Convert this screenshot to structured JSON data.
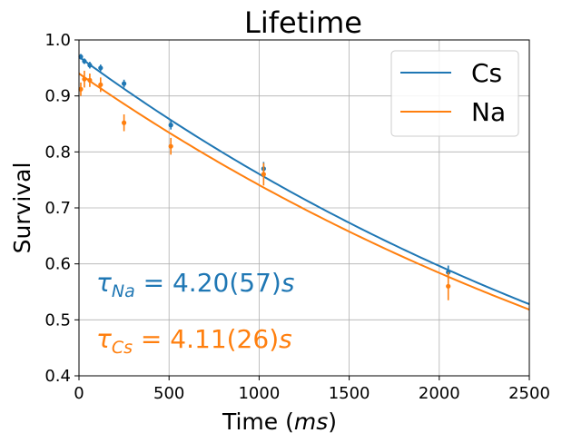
{
  "chart_data": {
    "type": "scatter",
    "title": "Lifetime",
    "xlabel_main": "Time (",
    "xlabel_unit": "ms",
    "xlabel_close": ")",
    "ylabel": "Survival",
    "xlim": [
      0,
      2500
    ],
    "ylim": [
      0.4,
      1.0
    ],
    "xticks": [
      0,
      500,
      1000,
      1500,
      2000,
      2500
    ],
    "xtick_labels": [
      "0",
      "500",
      "1000",
      "1500",
      "2000",
      "2500"
    ],
    "yticks": [
      0.4,
      0.5,
      0.6,
      0.7,
      0.8,
      0.9,
      1.0
    ],
    "ytick_labels": [
      "0.4",
      "0.5",
      "0.6",
      "0.7",
      "0.8",
      "0.9",
      "1.0"
    ],
    "grid": true,
    "legend_placement": "top-right",
    "series": [
      {
        "name": "Cs",
        "color": "#1f77b4",
        "points": [
          {
            "x": 10,
            "y": 0.97,
            "err": 0.005
          },
          {
            "x": 30,
            "y": 0.962,
            "err": 0.005
          },
          {
            "x": 60,
            "y": 0.955,
            "err": 0.006
          },
          {
            "x": 120,
            "y": 0.95,
            "err": 0.006
          },
          {
            "x": 250,
            "y": 0.922,
            "err": 0.007
          },
          {
            "x": 510,
            "y": 0.848,
            "err": 0.008
          },
          {
            "x": 1025,
            "y": 0.77,
            "err": 0.012
          },
          {
            "x": 2050,
            "y": 0.585,
            "err": 0.012
          }
        ],
        "fit": {
          "a": 0.97,
          "tau_ms": 4110
        }
      },
      {
        "name": "Na",
        "color": "#ff7f0e",
        "points": [
          {
            "x": 10,
            "y": 0.912,
            "err": 0.012
          },
          {
            "x": 30,
            "y": 0.93,
            "err": 0.015
          },
          {
            "x": 60,
            "y": 0.928,
            "err": 0.012
          },
          {
            "x": 120,
            "y": 0.92,
            "err": 0.013
          },
          {
            "x": 250,
            "y": 0.852,
            "err": 0.015
          },
          {
            "x": 510,
            "y": 0.81,
            "err": 0.015
          },
          {
            "x": 1025,
            "y": 0.76,
            "err": 0.02
          },
          {
            "x": 2050,
            "y": 0.56,
            "err": 0.025
          }
        ],
        "fit": {
          "a": 0.94,
          "tau_ms": 4200
        }
      }
    ],
    "annotations": [
      {
        "symbol": "τ",
        "sub": "Na",
        "text": " = 4.20(57)",
        "unit": "s",
        "color": "#1f77b4"
      },
      {
        "symbol": "τ",
        "sub": "Cs",
        "text": " = 4.11(26)",
        "unit": "s",
        "color": "#ff7f0e"
      }
    ]
  }
}
